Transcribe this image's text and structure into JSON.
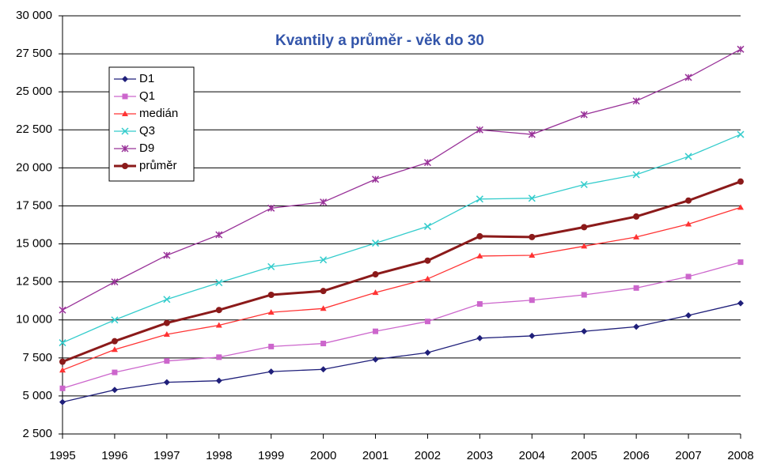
{
  "chart_data": {
    "type": "line",
    "title": "Kvantily a průměr - věk do 30",
    "categories": [
      "1995",
      "1996",
      "1997",
      "1998",
      "1999",
      "2000",
      "2001",
      "2002",
      "2003",
      "2004",
      "2005",
      "2006",
      "2007",
      "2008"
    ],
    "series": [
      {
        "name": "D1",
        "color": "#1f1f7a",
        "marker": "diamond",
        "values": [
          4600,
          5400,
          5900,
          6000,
          6600,
          6750,
          7400,
          7850,
          8800,
          8950,
          9250,
          9550,
          10300,
          11100
        ]
      },
      {
        "name": "Q1",
        "color": "#cc66cc",
        "marker": "square",
        "values": [
          5500,
          6550,
          7300,
          7550,
          8250,
          8450,
          9250,
          9900,
          11050,
          11300,
          11650,
          12100,
          12850,
          13800
        ]
      },
      {
        "name": "medián",
        "color": "#ff3333",
        "marker": "triangle",
        "values": [
          6700,
          8050,
          9050,
          9650,
          10500,
          10750,
          11800,
          12700,
          14200,
          14250,
          14850,
          15450,
          16300,
          17400
        ]
      },
      {
        "name": "Q3",
        "color": "#33cccc",
        "marker": "x",
        "values": [
          8500,
          10000,
          11350,
          12450,
          13500,
          13950,
          15050,
          16150,
          17950,
          18000,
          18900,
          19550,
          20750,
          22200
        ]
      },
      {
        "name": "D9",
        "color": "#993399",
        "marker": "asterisk",
        "values": [
          10650,
          12500,
          14250,
          15600,
          17350,
          17750,
          19250,
          20350,
          22500,
          22200,
          23500,
          24400,
          25950,
          27800
        ]
      },
      {
        "name": "průměr",
        "color": "#8b1a1a",
        "marker": "circle",
        "width": 3,
        "values": [
          7250,
          8600,
          9800,
          10650,
          11650,
          11900,
          13000,
          13900,
          15500,
          15450,
          16100,
          16800,
          17850,
          19100
        ]
      }
    ],
    "ylim": [
      2500,
      30000
    ],
    "yticks": [
      {
        "value": 2500,
        "label": "2 500"
      },
      {
        "value": 5000,
        "label": "5 000"
      },
      {
        "value": 7500,
        "label": "7 500"
      },
      {
        "value": 10000,
        "label": "10 000"
      },
      {
        "value": 12500,
        "label": "12 500"
      },
      {
        "value": 15000,
        "label": "15 000"
      },
      {
        "value": 17500,
        "label": "17 500"
      },
      {
        "value": 20000,
        "label": "20 000"
      },
      {
        "value": 22500,
        "label": "22 500"
      },
      {
        "value": 25000,
        "label": "25 000"
      },
      {
        "value": 27500,
        "label": "27 500"
      },
      {
        "value": 30000,
        "label": "30 000"
      }
    ],
    "grid": true
  }
}
